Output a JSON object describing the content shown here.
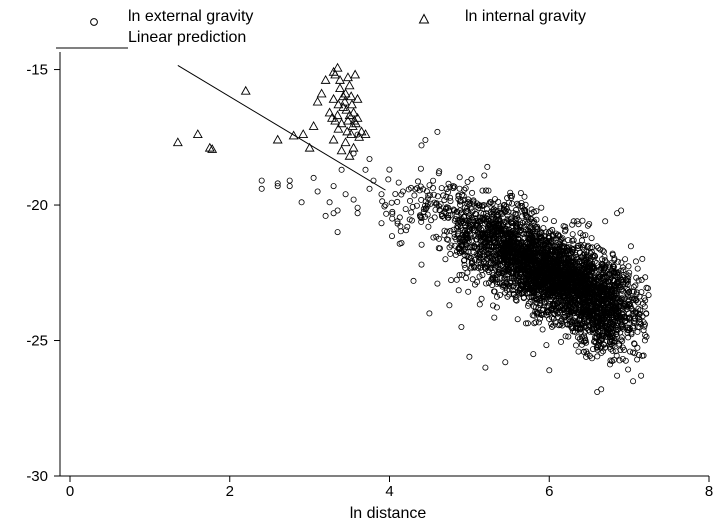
{
  "legend": {
    "external": "ln external gravity",
    "internal": "ln internal gravity",
    "prediction": "Linear prediction"
  },
  "chart_data": {
    "type": "scatter",
    "xlabel": "ln distance",
    "ylabel": "",
    "xlim": [
      0,
      8
    ],
    "ylim": [
      -30,
      -14.5
    ],
    "xticks": [
      0,
      2,
      4,
      6,
      8
    ],
    "yticks": [
      -15,
      -20,
      -25,
      -30
    ],
    "grid": false,
    "legend_position": "top",
    "series": [
      {
        "name": "ln external gravity",
        "marker": "circle",
        "clusters": [
          {
            "cx": 6.1,
            "cy": -22.6,
            "sx": 0.5,
            "sy": 0.9,
            "rho": -0.55,
            "n": 2600
          },
          {
            "cx": 5.3,
            "cy": -21.0,
            "sx": 0.35,
            "sy": 0.8,
            "rho": -0.3,
            "n": 500
          },
          {
            "cx": 4.5,
            "cy": -20.0,
            "sx": 0.35,
            "sy": 0.6,
            "rho": -0.2,
            "n": 120
          },
          {
            "cx": 6.6,
            "cy": -24.2,
            "sx": 0.25,
            "sy": 0.7,
            "rho": -0.3,
            "n": 450
          }
        ],
        "points": [
          [
            2.4,
            -19.1
          ],
          [
            2.4,
            -19.4
          ],
          [
            2.6,
            -19.2
          ],
          [
            2.6,
            -19.3
          ],
          [
            2.75,
            -19.1
          ],
          [
            2.75,
            -19.3
          ],
          [
            2.9,
            -19.9
          ],
          [
            3.05,
            -19.0
          ],
          [
            3.1,
            -19.5
          ],
          [
            3.2,
            -20.4
          ],
          [
            3.25,
            -19.9
          ],
          [
            3.3,
            -19.3
          ],
          [
            3.35,
            -20.2
          ],
          [
            3.3,
            -20.3
          ],
          [
            3.45,
            -19.6
          ],
          [
            3.55,
            -19.8
          ],
          [
            3.6,
            -20.1
          ],
          [
            3.6,
            -20.3
          ],
          [
            3.7,
            -18.7
          ],
          [
            3.75,
            -19.4
          ],
          [
            3.8,
            -19.1
          ],
          [
            3.9,
            -19.6
          ],
          [
            3.95,
            -20.0
          ],
          [
            3.35,
            -21.0
          ],
          [
            3.4,
            -18.7
          ],
          [
            3.6,
            -17.4
          ],
          [
            3.55,
            -18.1
          ],
          [
            3.75,
            -18.3
          ],
          [
            4.5,
            -24.0
          ],
          [
            4.15,
            -21.4
          ],
          [
            4.4,
            -22.2
          ],
          [
            4.55,
            -21.2
          ],
          [
            4.3,
            -22.8
          ],
          [
            4.6,
            -22.9
          ],
          [
            4.7,
            -22.0
          ],
          [
            4.6,
            -17.3
          ],
          [
            4.4,
            -17.8
          ],
          [
            4.45,
            -17.6
          ],
          [
            4.1,
            -20.6
          ],
          [
            5.8,
            -25.5
          ],
          [
            6.0,
            -26.1
          ],
          [
            6.6,
            -26.9
          ],
          [
            6.65,
            -26.8
          ],
          [
            6.85,
            -26.3
          ],
          [
            7.05,
            -26.5
          ],
          [
            7.15,
            -26.3
          ],
          [
            7.1,
            -25.7
          ],
          [
            7.2,
            -24.8
          ],
          [
            7.15,
            -24.4
          ],
          [
            6.5,
            -20.7
          ],
          [
            6.7,
            -20.6
          ],
          [
            6.85,
            -20.3
          ],
          [
            6.9,
            -20.2
          ],
          [
            5.9,
            -20.1
          ],
          [
            6.2,
            -20.8
          ],
          [
            6.35,
            -20.6
          ],
          [
            6.95,
            -22.0
          ],
          [
            7.0,
            -23.2
          ],
          [
            7.05,
            -23.5
          ],
          [
            5.0,
            -25.6
          ],
          [
            5.2,
            -26.0
          ],
          [
            5.45,
            -25.8
          ],
          [
            4.75,
            -23.7
          ],
          [
            4.9,
            -24.5
          ]
        ]
      },
      {
        "name": "ln internal gravity",
        "marker": "triangle",
        "points": [
          [
            1.35,
            -17.7
          ],
          [
            1.6,
            -17.4
          ],
          [
            1.75,
            -17.9
          ],
          [
            1.78,
            -17.95
          ],
          [
            2.2,
            -15.8
          ],
          [
            2.6,
            -17.6
          ],
          [
            2.8,
            -17.45
          ],
          [
            2.92,
            -17.4
          ],
          [
            3.0,
            -17.9
          ],
          [
            3.05,
            -17.1
          ],
          [
            3.1,
            -16.2
          ],
          [
            3.15,
            -15.9
          ],
          [
            3.2,
            -15.4
          ],
          [
            3.25,
            -16.6
          ],
          [
            3.3,
            -15.1
          ],
          [
            3.32,
            -15.2
          ],
          [
            3.35,
            -14.95
          ],
          [
            3.38,
            -15.4
          ],
          [
            3.3,
            -16.1
          ],
          [
            3.28,
            -16.8
          ],
          [
            3.36,
            -17.2
          ],
          [
            3.42,
            -16.4
          ],
          [
            3.45,
            -15.9
          ],
          [
            3.48,
            -16.9
          ],
          [
            3.5,
            -15.6
          ],
          [
            3.52,
            -17.4
          ],
          [
            3.55,
            -16.6
          ],
          [
            3.57,
            -15.2
          ],
          [
            3.58,
            -17.0
          ],
          [
            3.6,
            -16.1
          ],
          [
            3.62,
            -17.5
          ],
          [
            3.4,
            -18.0
          ],
          [
            3.45,
            -17.7
          ],
          [
            3.5,
            -18.2
          ],
          [
            3.55,
            -17.9
          ],
          [
            3.6,
            -16.8
          ],
          [
            3.35,
            -16.7
          ],
          [
            3.4,
            -17.0
          ],
          [
            3.44,
            -16.2
          ],
          [
            3.47,
            -17.3
          ],
          [
            3.5,
            -16.7
          ],
          [
            3.53,
            -16.3
          ],
          [
            3.38,
            -15.7
          ],
          [
            3.42,
            -16.0
          ],
          [
            3.46,
            -16.5
          ],
          [
            3.54,
            -17.1
          ],
          [
            3.56,
            -16.9
          ],
          [
            3.3,
            -17.6
          ],
          [
            3.32,
            -16.9
          ],
          [
            3.36,
            -16.3
          ],
          [
            3.65,
            -17.3
          ],
          [
            3.7,
            -17.4
          ],
          [
            3.48,
            -15.3
          ],
          [
            3.52,
            -16.0
          ]
        ]
      },
      {
        "name": "Linear prediction",
        "type": "line",
        "x": [
          1.35,
          3.95
        ],
        "y": [
          -14.85,
          -19.45
        ]
      }
    ]
  }
}
